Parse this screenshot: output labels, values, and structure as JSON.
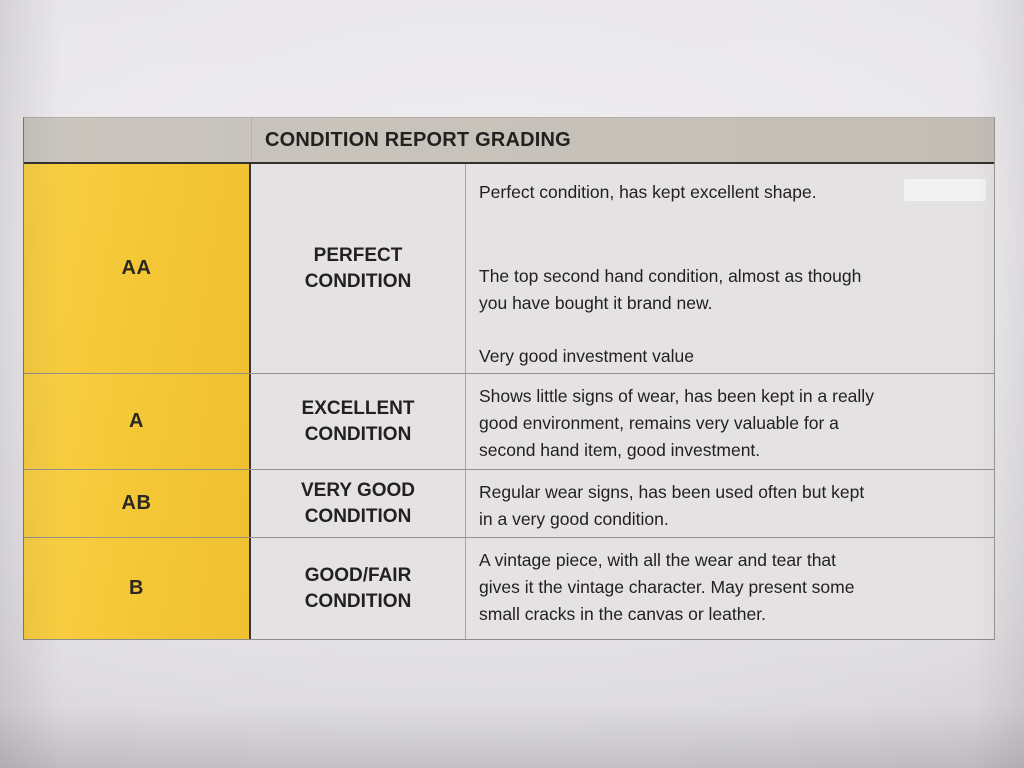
{
  "colors": {
    "accent_yellow": "#f5c837",
    "header_gray": "#cac6bf",
    "cell_bg": "#e4e2e3",
    "paper": "#e9e7ea",
    "ink": "#232120",
    "dark_line": "#33312d"
  },
  "table": {
    "title": "CONDITION REPORT GRADING",
    "rows": [
      {
        "grade": "AA",
        "label_lines": [
          "PERFECT",
          "CONDITION"
        ],
        "paragraphs": [
          [
            "Perfect condition, has kept excellent shape."
          ],
          [
            "The top second hand condition, almost as though",
            "you have bought it brand new."
          ],
          [
            "Very good investment value"
          ]
        ]
      },
      {
        "grade": "A",
        "label_lines": [
          "EXCELLENT",
          "CONDITION"
        ],
        "paragraphs": [
          [
            "Shows little signs of wear, has been kept in a really",
            "good environment, remains very valuable for a",
            "second hand item, good investment."
          ]
        ]
      },
      {
        "grade": "AB",
        "label_lines": [
          "VERY GOOD",
          "CONDITION"
        ],
        "paragraphs": [
          [
            "Regular wear signs, has been used often but kept",
            "in a very good condition."
          ]
        ]
      },
      {
        "grade": "B",
        "label_lines": [
          "GOOD/FAIR",
          "CONDITION"
        ],
        "paragraphs": [
          [
            "A vintage piece, with all the wear and tear that",
            "gives it the vintage character. May present some",
            "small cracks in the canvas or leather."
          ]
        ]
      }
    ]
  }
}
